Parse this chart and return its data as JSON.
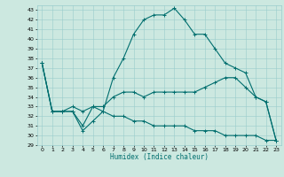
{
  "xlabel": "Humidex (Indice chaleur)",
  "bg_color": "#cce8e0",
  "line_color": "#006e6e",
  "grid_color": "#99cccc",
  "ylim": [
    29,
    43.5
  ],
  "xlim": [
    -0.5,
    23.5
  ],
  "yticks": [
    29,
    30,
    31,
    32,
    33,
    34,
    35,
    36,
    37,
    38,
    39,
    40,
    41,
    42,
    43
  ],
  "xticks": [
    0,
    1,
    2,
    3,
    4,
    5,
    6,
    7,
    8,
    9,
    10,
    11,
    12,
    13,
    14,
    15,
    16,
    17,
    18,
    19,
    20,
    21,
    22,
    23
  ],
  "line1_x": [
    0,
    1,
    2,
    3,
    4,
    5,
    6,
    7,
    8,
    9,
    10,
    11,
    12,
    13,
    14,
    15,
    16,
    17,
    18,
    19,
    20,
    21,
    22,
    23
  ],
  "line1_y": [
    37.5,
    32.5,
    32.5,
    32.5,
    31.0,
    33.0,
    32.5,
    36.0,
    38.0,
    40.5,
    42.0,
    42.5,
    42.5,
    43.2,
    42.0,
    40.5,
    40.5,
    39.0,
    37.5,
    37.0,
    36.5,
    34.0,
    33.5,
    29.5
  ],
  "line2_x": [
    0,
    1,
    2,
    3,
    4,
    5,
    6,
    7,
    8,
    9,
    10,
    11,
    12,
    13,
    14,
    15,
    16,
    17,
    18,
    19,
    20,
    21,
    22,
    23
  ],
  "line2_y": [
    37.5,
    32.5,
    32.5,
    33.0,
    32.5,
    33.0,
    33.0,
    34.0,
    34.5,
    34.5,
    34.0,
    34.5,
    34.5,
    34.5,
    34.5,
    34.5,
    35.0,
    35.5,
    36.0,
    36.0,
    35.0,
    34.0,
    33.5,
    29.5
  ],
  "line3_x": [
    0,
    1,
    2,
    3,
    4,
    5,
    6,
    7,
    8,
    9,
    10,
    11,
    12,
    13,
    14,
    15,
    16,
    17,
    18,
    19,
    20,
    21,
    22,
    23
  ],
  "line3_y": [
    37.5,
    32.5,
    32.5,
    32.5,
    30.5,
    31.5,
    32.5,
    32.0,
    32.0,
    31.5,
    31.5,
    31.0,
    31.0,
    31.0,
    31.0,
    30.5,
    30.5,
    30.5,
    30.0,
    30.0,
    30.0,
    30.0,
    29.5,
    29.5
  ]
}
